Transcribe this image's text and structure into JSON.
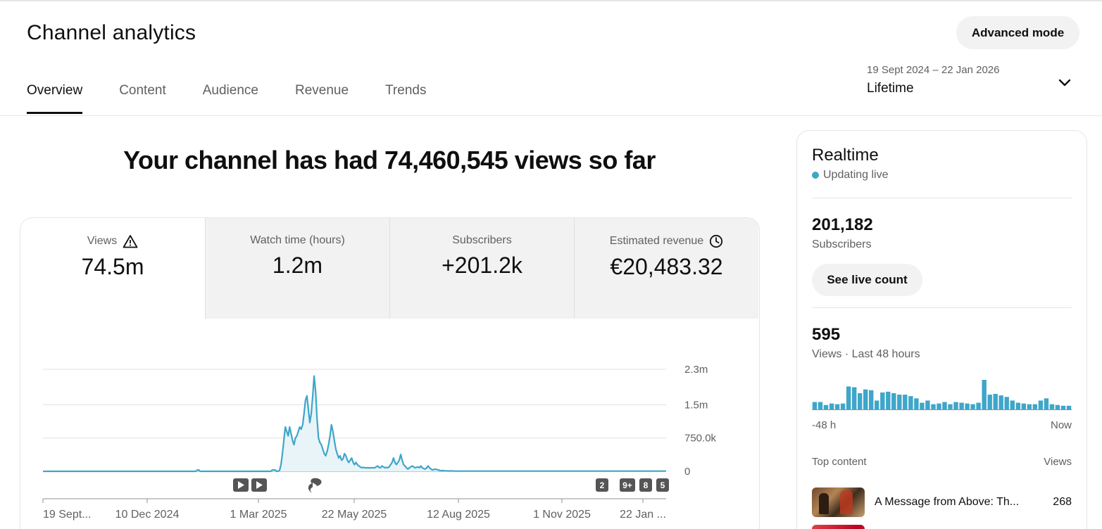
{
  "header": {
    "title": "Channel analytics",
    "advanced_mode_label": "Advanced mode",
    "date_range": "19 Sept 2024 – 22 Jan 2026",
    "period_label": "Lifetime"
  },
  "tabs": [
    {
      "label": "Overview",
      "active": true
    },
    {
      "label": "Content",
      "active": false
    },
    {
      "label": "Audience",
      "active": false
    },
    {
      "label": "Revenue",
      "active": false
    },
    {
      "label": "Trends",
      "active": false
    }
  ],
  "headline": "Your channel has had 74,460,545 views so far",
  "metrics": [
    {
      "label": "Views",
      "value": "74.5m",
      "icon": "warning-icon",
      "active": true
    },
    {
      "label": "Watch time (hours)",
      "value": "1.2m",
      "icon": "",
      "active": false
    },
    {
      "label": "Subscribers",
      "value": "+201.2k",
      "icon": "",
      "active": false
    },
    {
      "label": "Estimated revenue",
      "value": "€20,483.32",
      "icon": "clock-icon",
      "active": false
    }
  ],
  "chart_data": {
    "type": "area",
    "series": [
      {
        "values": [
          0,
          0,
          0,
          0,
          0,
          0,
          0,
          0,
          0,
          0,
          0,
          0,
          0,
          0,
          0,
          0,
          0,
          0,
          0,
          0,
          0,
          0,
          0,
          0,
          0,
          0,
          0,
          0,
          0,
          0,
          0,
          0,
          0,
          0,
          0,
          0,
          0,
          0,
          0,
          0,
          0,
          0,
          0,
          0,
          0,
          0,
          0,
          0,
          0,
          0,
          0,
          0,
          0,
          0,
          0,
          0,
          0,
          0,
          0,
          0,
          0,
          0,
          0,
          0,
          0,
          0,
          0,
          0,
          0,
          0,
          0,
          0,
          0,
          0,
          0,
          0,
          0,
          0,
          0,
          0,
          0,
          0,
          0,
          0,
          0,
          0,
          0,
          0,
          0,
          0,
          0,
          0,
          0,
          0,
          0,
          0,
          0,
          0,
          0,
          0,
          0,
          0,
          0,
          0,
          0,
          0,
          0,
          30000,
          30000,
          0,
          0,
          0,
          0,
          0,
          0,
          0,
          0,
          0,
          0,
          0,
          0,
          0,
          0,
          0,
          0,
          0,
          0,
          0,
          0,
          0,
          0,
          0,
          0,
          0,
          0,
          0,
          0,
          0,
          0,
          0,
          0,
          0,
          0,
          0,
          0,
          0,
          0,
          0,
          0,
          0,
          0,
          0,
          0,
          0,
          0,
          0,
          0,
          0,
          0,
          30000,
          30000,
          30000,
          0,
          0,
          20000,
          150000,
          400000,
          700000,
          1000000,
          900000,
          800000,
          1000000,
          850000,
          700000,
          600000,
          750000,
          800000,
          900000,
          1000000,
          950000,
          1050000,
          1300000,
          1600000,
          1700000,
          1400000,
          1100000,
          1300000,
          1700000,
          2150000,
          1800000,
          1200000,
          750000,
          650000,
          600000,
          500000,
          400000,
          350000,
          450000,
          600000,
          800000,
          1050000,
          900000,
          700000,
          500000,
          400000,
          300000,
          350000,
          250000,
          280000,
          400000,
          350000,
          250000,
          200000,
          250000,
          300000,
          200000,
          150000,
          200000,
          150000,
          120000,
          100000,
          80000,
          90000,
          80000,
          80000,
          80000,
          80000,
          80000,
          80000,
          80000,
          80000,
          100000,
          120000,
          90000,
          80000,
          120000,
          100000,
          80000,
          90000,
          80000,
          100000,
          150000,
          200000,
          300000,
          200000,
          150000,
          200000,
          250000,
          380000,
          250000,
          150000,
          120000,
          80000,
          50000,
          80000,
          100000,
          120000,
          100000,
          80000,
          90000,
          100000,
          80000,
          120000,
          80000,
          60000,
          50000,
          80000,
          120000,
          80000,
          50000,
          30000,
          40000,
          50000,
          40000,
          30000,
          20000,
          10000,
          20000,
          10000,
          10000,
          10000,
          5000,
          10000,
          5000,
          10000,
          5000,
          5000,
          5000,
          5000,
          5000,
          5000,
          5000,
          5000,
          5000,
          5000,
          5000,
          5000,
          5000,
          5000,
          5000,
          5000,
          5000,
          5000,
          5000,
          5000,
          5000,
          5000,
          5000,
          5000,
          5000,
          5000,
          5000,
          5000,
          5000,
          5000,
          5000,
          5000,
          5000,
          5000,
          5000,
          5000,
          5000,
          5000,
          5000,
          5000,
          5000,
          5000,
          5000,
          5000,
          5000,
          5000,
          5000,
          5000,
          5000,
          5000,
          5000,
          5000,
          5000,
          5000,
          5000,
          5000,
          5000,
          5000,
          5000,
          5000,
          5000,
          5000,
          5000,
          5000,
          5000,
          5000,
          5000,
          5000,
          5000,
          5000,
          5000,
          5000,
          5000,
          5000,
          5000,
          5000,
          5000,
          5000,
          5000,
          5000,
          5000,
          5000,
          5000,
          5000,
          5000,
          5000,
          5000,
          5000,
          5000,
          5000,
          5000,
          5000,
          5000,
          5000,
          5000,
          5000,
          5000,
          5000,
          5000,
          5000,
          5000,
          5000,
          5000,
          5000,
          5000,
          5000,
          5000,
          5000,
          5000,
          5000,
          5000,
          5000,
          5000,
          5000,
          5000,
          5000,
          5000,
          5000,
          5000,
          5000,
          5000,
          5000,
          5000,
          5000,
          5000,
          5000,
          5000,
          5000,
          5000,
          5000,
          5000,
          5000,
          5000,
          5000,
          5000,
          5000,
          5000,
          5000,
          5000,
          5000,
          5000,
          5000,
          5000,
          5000,
          5000,
          5000,
          5000,
          5000
        ]
      }
    ],
    "x_ticks": [
      "19 Sept...",
      "10 Dec 2024",
      "1 Mar 2025",
      "22 May 2025",
      "12 Aug 2025",
      "1 Nov 2025",
      "22 Jan ..."
    ],
    "y_ticks": [
      "2.3m",
      "1.5m",
      "750.0k",
      "0"
    ],
    "ylim": [
      0,
      2300000
    ],
    "grid": true,
    "color": "#3ea6c9",
    "markers": [
      {
        "icon": "play-icon",
        "label": ""
      },
      {
        "icon": "play-icon",
        "label": ""
      },
      {
        "icon": "shorts-icon",
        "label": ""
      },
      {
        "icon": "",
        "label": "2"
      },
      {
        "icon": "",
        "label": "9+"
      },
      {
        "icon": "",
        "label": "8"
      },
      {
        "icon": "",
        "label": "5"
      }
    ]
  },
  "realtime": {
    "title": "Realtime",
    "status": "Updating live",
    "subscribers_value": "201,182",
    "subscribers_label": "Subscribers",
    "live_count_label": "See live count",
    "views_value": "595",
    "views_label": "Views · Last 48 hours",
    "mini_chart": {
      "type": "bar",
      "values": [
        10,
        10,
        6,
        8,
        7,
        8,
        31,
        30,
        22,
        27,
        26,
        12,
        23,
        24,
        22,
        20,
        20,
        18,
        15,
        9,
        12,
        7,
        8,
        10,
        7,
        10,
        9,
        8,
        7,
        9,
        40,
        20,
        21,
        19,
        17,
        12,
        9,
        8,
        7,
        7,
        12,
        15,
        7,
        6,
        5,
        5
      ],
      "left_label": "-48 h",
      "right_label": "Now",
      "color": "#3ea6c9"
    },
    "top_content_label": "Top content",
    "top_content_views_label": "Views",
    "top_items": [
      {
        "title": "A Message from Above: Th...",
        "views": "268"
      }
    ]
  }
}
